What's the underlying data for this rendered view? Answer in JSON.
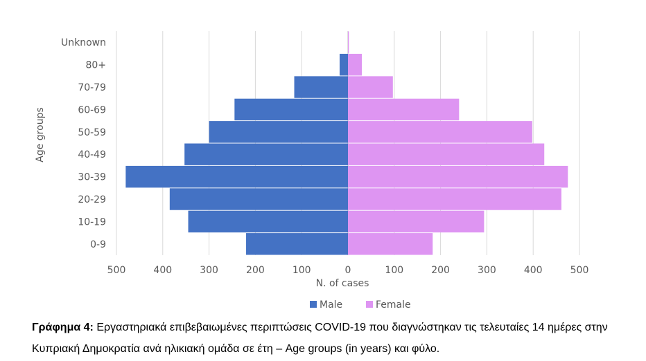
{
  "chart_data": {
    "type": "bar",
    "orientation": "horizontal",
    "layout": "population-pyramid",
    "categories": [
      "0-9",
      "10-19",
      "20-29",
      "30-39",
      "40-49",
      "50-59",
      "60-69",
      "70-79",
      "80+",
      "Unknown"
    ],
    "series": [
      {
        "name": "Male",
        "color": "#4472C4",
        "values": [
          220,
          345,
          385,
          480,
          353,
          300,
          245,
          116,
          18,
          0
        ]
      },
      {
        "name": "Female",
        "color": "#DE95F2",
        "values": [
          183,
          294,
          461,
          475,
          424,
          398,
          240,
          97,
          30,
          2
        ]
      }
    ],
    "xlabel": "N. of cases",
    "ylabel": "Age groups",
    "xlim": [
      -500,
      500
    ],
    "xticks": [
      -500,
      -400,
      -300,
      -200,
      -100,
      0,
      100,
      200,
      300,
      400,
      500
    ],
    "xtick_labels": [
      "500",
      "400",
      "300",
      "200",
      "100",
      "0",
      "100",
      "200",
      "300",
      "400",
      "500"
    ],
    "grid": "vertical",
    "legend": "bottom-center"
  },
  "caption": {
    "label": "Γράφημα 4:",
    "text": "  Εργαστηριακά επιβεβαιωμένες περιπτώσεις COVID-19 που διαγνώστηκαν τις τελευταίες 14 ημέρες στην Κυπριακή Δημοκρατία ανά ηλικιακή ομάδα σε έτη – Age groups (in years) και φύλο."
  }
}
